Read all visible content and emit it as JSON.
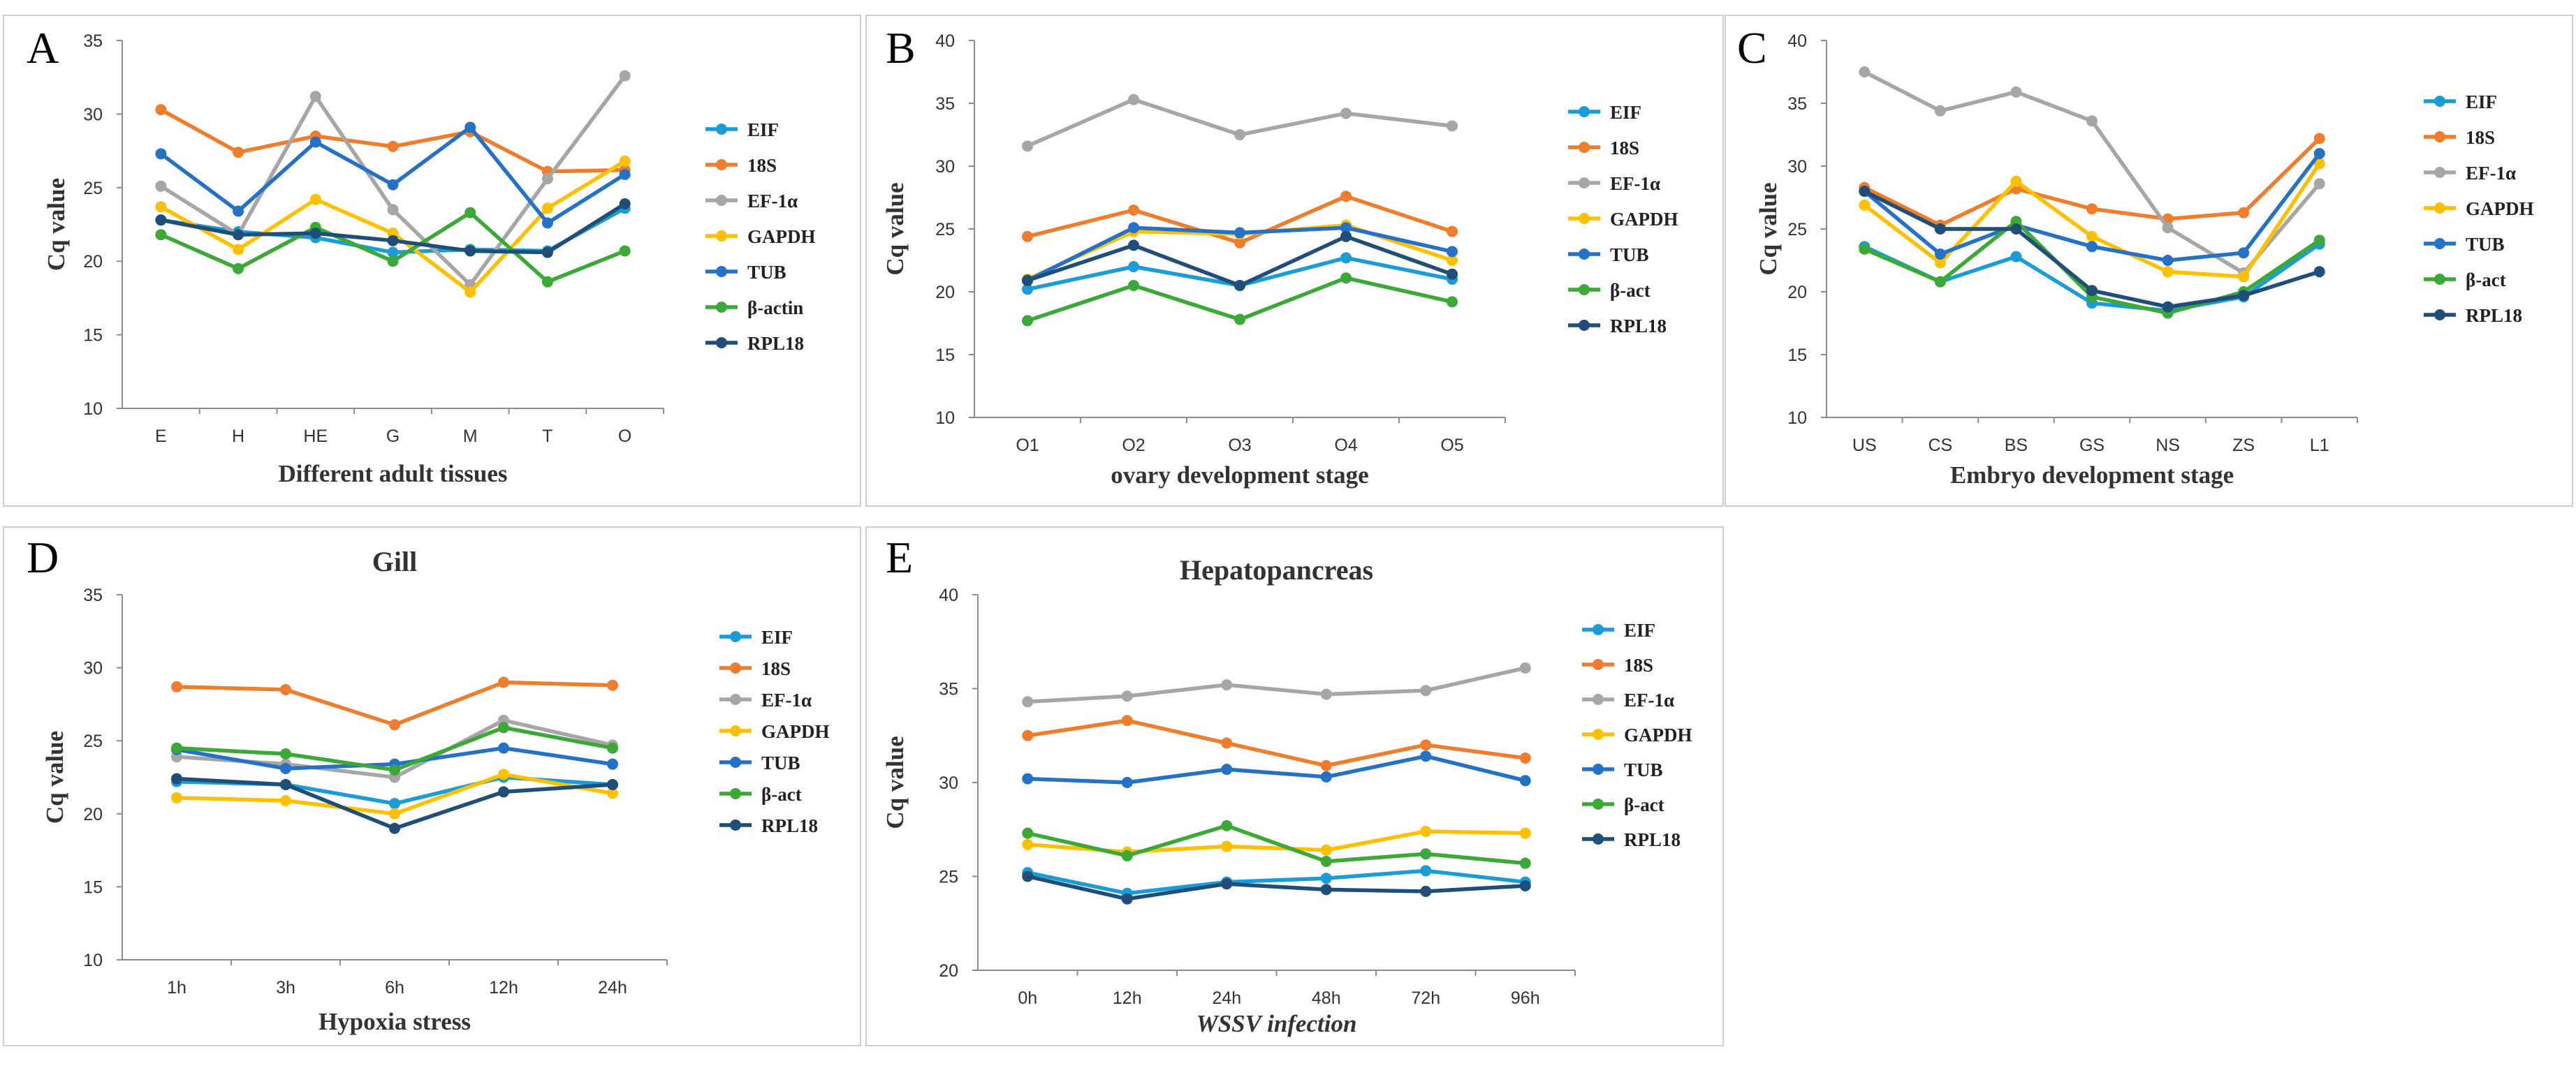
{
  "chart_data": [
    {
      "label": "A",
      "title": "",
      "type": "line",
      "xlabel": "Different adult tissues",
      "ylabel": "Cq value",
      "ylim": [
        10,
        35
      ],
      "yticks": [
        10,
        15,
        20,
        25,
        30,
        35
      ],
      "categories": [
        "E",
        "H",
        "HE",
        "G",
        "M",
        "T",
        "O"
      ],
      "series": [
        {
          "name": "EIF",
          "color": "#1a9cd8",
          "values": [
            22.8,
            22.0,
            21.6,
            20.6,
            20.8,
            20.7,
            23.6
          ]
        },
        {
          "name": "18S",
          "color": "#f07d2c",
          "values": [
            30.3,
            27.4,
            28.5,
            27.8,
            28.8,
            26.1,
            26.2
          ]
        },
        {
          "name": "EF-1α",
          "color": "#a6a6a6",
          "values": [
            25.1,
            21.8,
            31.2,
            23.5,
            18.4,
            25.6,
            32.6
          ]
        },
        {
          "name": "GAPDH",
          "color": "#ffc000",
          "values": [
            23.7,
            20.8,
            24.2,
            21.9,
            17.9,
            23.6,
            26.8
          ]
        },
        {
          "name": "TUB",
          "color": "#2472c8",
          "values": [
            27.3,
            23.4,
            28.1,
            25.2,
            29.1,
            22.6,
            25.9
          ]
        },
        {
          "name": "β-actin",
          "color": "#3aa935",
          "values": [
            21.8,
            19.5,
            22.3,
            20.0,
            23.3,
            18.6,
            20.7
          ]
        },
        {
          "name": "RPL18",
          "color": "#1f4e79",
          "values": [
            22.8,
            21.8,
            21.9,
            21.4,
            20.7,
            20.6,
            23.9
          ]
        }
      ]
    },
    {
      "label": "B",
      "title": "",
      "type": "line",
      "xlabel": "ovary development stage",
      "ylabel": "Cq value",
      "ylim": [
        10,
        40
      ],
      "yticks": [
        10,
        15,
        20,
        25,
        30,
        35,
        40
      ],
      "categories": [
        "O1",
        "O2",
        "O3",
        "O4",
        "O5"
      ],
      "series": [
        {
          "name": "EIF",
          "color": "#1a9cd8",
          "values": [
            20.2,
            22.0,
            20.5,
            22.7,
            21.0
          ]
        },
        {
          "name": "18S",
          "color": "#f07d2c",
          "values": [
            24.4,
            26.5,
            23.9,
            27.6,
            24.8
          ]
        },
        {
          "name": "EF-1α",
          "color": "#a6a6a6",
          "values": [
            31.6,
            35.3,
            32.5,
            34.2,
            33.2
          ]
        },
        {
          "name": "GAPDH",
          "color": "#ffc000",
          "values": [
            21.0,
            24.8,
            24.6,
            25.3,
            22.5
          ]
        },
        {
          "name": "TUB",
          "color": "#2472c8",
          "values": [
            20.9,
            25.1,
            24.7,
            25.1,
            23.2
          ]
        },
        {
          "name": "β-act",
          "color": "#3aa935",
          "values": [
            17.7,
            20.5,
            17.8,
            21.1,
            19.2
          ]
        },
        {
          "name": "RPL18",
          "color": "#1f4e79",
          "values": [
            20.9,
            23.7,
            20.5,
            24.4,
            21.4
          ]
        }
      ]
    },
    {
      "label": "C",
      "title": "",
      "type": "line",
      "xlabel": "Embryo development stage",
      "ylabel": "Cq value",
      "ylim": [
        10,
        40
      ],
      "yticks": [
        10,
        15,
        20,
        25,
        30,
        35,
        40
      ],
      "categories": [
        "US",
        "CS",
        "BS",
        "GS",
        "NS",
        "ZS",
        "L1"
      ],
      "series": [
        {
          "name": "EIF",
          "color": "#1a9cd8",
          "values": [
            23.6,
            20.8,
            22.8,
            19.1,
            18.5,
            19.6,
            23.8
          ]
        },
        {
          "name": "18S",
          "color": "#f07d2c",
          "values": [
            28.3,
            25.3,
            28.2,
            26.6,
            25.8,
            26.3,
            32.2
          ]
        },
        {
          "name": "EF-1α",
          "color": "#a6a6a6",
          "values": [
            37.5,
            34.4,
            35.9,
            33.6,
            25.1,
            21.5,
            28.6
          ]
        },
        {
          "name": "GAPDH",
          "color": "#ffc000",
          "values": [
            26.9,
            22.3,
            28.8,
            24.4,
            21.6,
            21.2,
            30.2
          ]
        },
        {
          "name": "TUB",
          "color": "#2472c8",
          "values": [
            28.0,
            23.0,
            25.3,
            23.6,
            22.5,
            23.1,
            31.0
          ]
        },
        {
          "name": "β-act",
          "color": "#3aa935",
          "values": [
            23.4,
            20.8,
            25.6,
            19.6,
            18.3,
            20.0,
            24.1
          ]
        },
        {
          "name": "RPL18",
          "color": "#1f4e79",
          "values": [
            28.0,
            25.0,
            25.0,
            20.1,
            18.8,
            19.7,
            21.6
          ]
        }
      ]
    },
    {
      "label": "D",
      "title": "Gill",
      "type": "line",
      "xlabel": "Hypoxia stress",
      "ylabel": "Cq value",
      "ylim": [
        10,
        35
      ],
      "yticks": [
        10,
        15,
        20,
        25,
        30,
        35
      ],
      "categories": [
        "1h",
        "3h",
        "6h",
        "12h",
        "24h"
      ],
      "series": [
        {
          "name": "EIF",
          "color": "#1a9cd8",
          "values": [
            22.2,
            22.0,
            20.7,
            22.5,
            22.0
          ]
        },
        {
          "name": "18S",
          "color": "#f07d2c",
          "values": [
            28.7,
            28.5,
            26.1,
            29.0,
            28.8
          ]
        },
        {
          "name": "EF-1α",
          "color": "#a6a6a6",
          "values": [
            23.9,
            23.4,
            22.5,
            26.4,
            24.7
          ]
        },
        {
          "name": "GAPDH",
          "color": "#ffc000",
          "values": [
            21.1,
            20.9,
            20.0,
            22.7,
            21.4
          ]
        },
        {
          "name": "TUB",
          "color": "#2472c8",
          "values": [
            24.4,
            23.1,
            23.4,
            24.5,
            23.4
          ]
        },
        {
          "name": "β-act",
          "color": "#3aa935",
          "values": [
            24.5,
            24.1,
            23.0,
            25.9,
            24.5
          ]
        },
        {
          "name": "RPL18",
          "color": "#1f4e79",
          "values": [
            22.4,
            22.0,
            19.0,
            21.5,
            22.0
          ]
        }
      ]
    },
    {
      "label": "E",
      "title": "Hepatopancreas",
      "type": "line",
      "xlabel": "WSSV infection",
      "ylabel": "Cq value",
      "ylim": [
        20,
        40
      ],
      "yticks": [
        20,
        25,
        30,
        35,
        40
      ],
      "categories": [
        "0h",
        "12h",
        "24h",
        "48h",
        "72h",
        "96h"
      ],
      "series": [
        {
          "name": "EIF",
          "color": "#1a9cd8",
          "values": [
            25.2,
            24.1,
            24.7,
            24.9,
            25.3,
            24.7
          ]
        },
        {
          "name": "18S",
          "color": "#f07d2c",
          "values": [
            32.5,
            33.3,
            32.1,
            30.9,
            32.0,
            31.3
          ]
        },
        {
          "name": "EF-1α",
          "color": "#a6a6a6",
          "values": [
            34.3,
            34.6,
            35.2,
            34.7,
            34.9,
            36.1
          ]
        },
        {
          "name": "GAPDH",
          "color": "#ffc000",
          "values": [
            26.7,
            26.3,
            26.6,
            26.4,
            27.4,
            27.3
          ]
        },
        {
          "name": "TUB",
          "color": "#2472c8",
          "values": [
            30.2,
            30.0,
            30.7,
            30.3,
            31.4,
            30.1
          ]
        },
        {
          "name": "β-act",
          "color": "#3aa935",
          "values": [
            27.3,
            26.1,
            27.7,
            25.8,
            26.2,
            25.7
          ]
        },
        {
          "name": "RPL18",
          "color": "#1f4e79",
          "values": [
            25.0,
            23.8,
            24.6,
            24.3,
            24.2,
            24.5
          ]
        }
      ]
    }
  ]
}
